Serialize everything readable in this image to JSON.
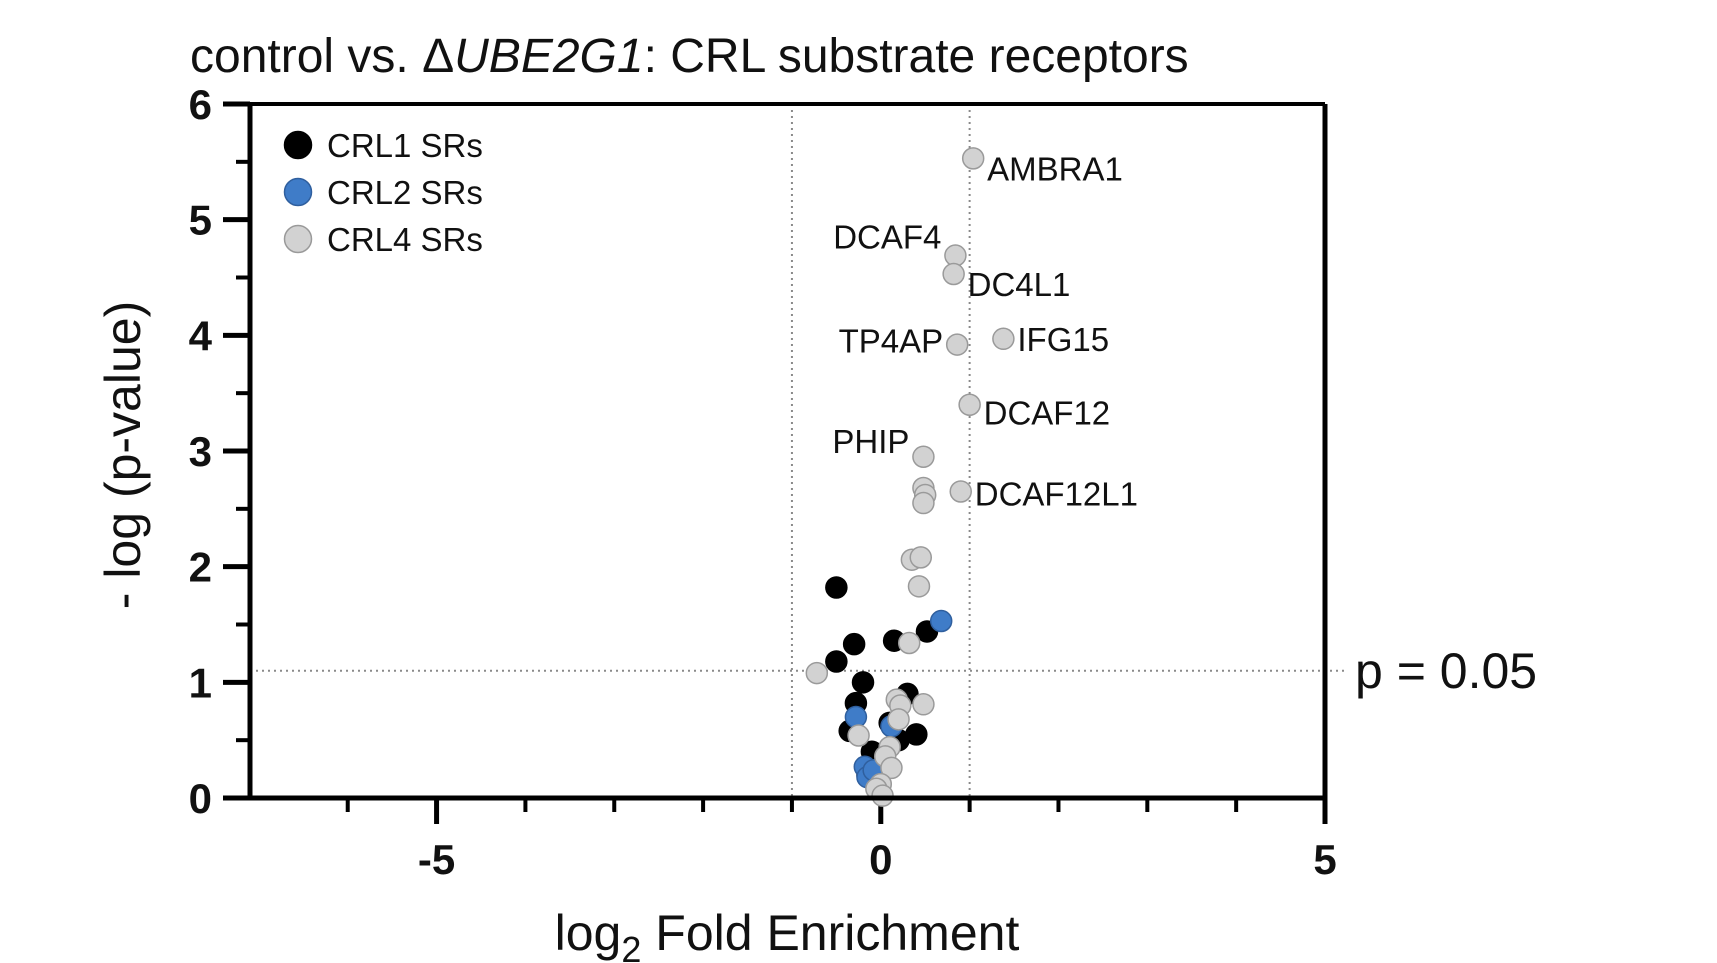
{
  "chart_data": {
    "type": "scatter",
    "title": {
      "prefix": "control vs. Δ",
      "italic": "UBE2G1",
      "suffix": ": CRL substrate receptors"
    },
    "xlabel": {
      "main": "log",
      "sub": "2",
      "rest": " Fold Enrichment"
    },
    "ylabel": "- log (p-value)",
    "xlim": [
      -7.1,
      5
    ],
    "ylim": [
      0,
      6
    ],
    "x_ticks": [
      -5,
      0,
      5
    ],
    "x_tick_labels": [
      "-5",
      "0",
      "5"
    ],
    "x_minor_ticks": [
      -6,
      -4,
      -3,
      -2,
      -1,
      1,
      2,
      3,
      4
    ],
    "y_ticks": [
      0,
      1,
      2,
      3,
      4,
      5,
      6
    ],
    "y_tick_labels": [
      "0",
      "1",
      "2",
      "3",
      "4",
      "5",
      "6"
    ],
    "y_minor_ticks": [
      0.5,
      1.5,
      2.5,
      3.5,
      4.5,
      5.5
    ],
    "reference_lines": {
      "vertical": [
        -1,
        1
      ],
      "horizontal": 1.1,
      "horizontal_label": "p = 0.05"
    },
    "series": [
      {
        "name": "CRL1 SRs",
        "color": "#000000",
        "points": [
          {
            "x": -0.5,
            "y": 1.82
          },
          {
            "x": -0.3,
            "y": 1.33
          },
          {
            "x": -0.5,
            "y": 1.18
          },
          {
            "x": -0.2,
            "y": 1.0
          },
          {
            "x": -0.28,
            "y": 0.82
          },
          {
            "x": -0.35,
            "y": 0.58
          },
          {
            "x": -0.1,
            "y": 0.4
          },
          {
            "x": -0.15,
            "y": 0.2
          },
          {
            "x": 0.15,
            "y": 1.36
          },
          {
            "x": 0.52,
            "y": 1.44
          },
          {
            "x": 0.3,
            "y": 0.9
          },
          {
            "x": 0.4,
            "y": 0.55
          },
          {
            "x": 0.2,
            "y": 0.5
          },
          {
            "x": 0.1,
            "y": 0.65
          }
        ]
      },
      {
        "name": "CRL2 SRs",
        "color": "#3f7cc8",
        "points": [
          {
            "x": 0.68,
            "y": 1.53
          },
          {
            "x": -0.28,
            "y": 0.7
          },
          {
            "x": 0.12,
            "y": 0.62
          },
          {
            "x": -0.18,
            "y": 0.27
          },
          {
            "x": -0.15,
            "y": 0.18
          },
          {
            "x": -0.08,
            "y": 0.24
          }
        ]
      },
      {
        "name": "CRL4 SRs",
        "color": "#d2d2d2",
        "points": [
          {
            "x": 1.04,
            "y": 5.53,
            "label": "AMBRA1",
            "label_side": "right"
          },
          {
            "x": 0.84,
            "y": 4.69,
            "label": "DCAF4",
            "label_side": "left"
          },
          {
            "x": 0.82,
            "y": 4.53,
            "label": "DC4L1",
            "label_side": "right"
          },
          {
            "x": 1.38,
            "y": 3.97,
            "label": "IFG15",
            "label_side": "right"
          },
          {
            "x": 0.86,
            "y": 3.92,
            "label": "TP4AP",
            "label_side": "left"
          },
          {
            "x": 1.0,
            "y": 3.4,
            "label": "DCAF12",
            "label_side": "right"
          },
          {
            "x": 0.48,
            "y": 2.95,
            "label": "PHIP",
            "label_side": "left"
          },
          {
            "x": 0.9,
            "y": 2.65,
            "label": "DCAF12L1",
            "label_side": "right"
          },
          {
            "x": 0.48,
            "y": 2.68
          },
          {
            "x": 0.5,
            "y": 2.62
          },
          {
            "x": 0.48,
            "y": 2.55
          },
          {
            "x": 0.35,
            "y": 2.06
          },
          {
            "x": 0.45,
            "y": 2.08
          },
          {
            "x": 0.43,
            "y": 1.83
          },
          {
            "x": 0.32,
            "y": 1.34
          },
          {
            "x": -0.72,
            "y": 1.08
          },
          {
            "x": 0.18,
            "y": 0.85
          },
          {
            "x": 0.22,
            "y": 0.8
          },
          {
            "x": 0.48,
            "y": 0.81
          },
          {
            "x": 0.2,
            "y": 0.68
          },
          {
            "x": -0.25,
            "y": 0.54
          },
          {
            "x": 0.1,
            "y": 0.44
          },
          {
            "x": 0.05,
            "y": 0.36
          },
          {
            "x": 0.12,
            "y": 0.26
          },
          {
            "x": 0.0,
            "y": 0.12
          },
          {
            "x": -0.05,
            "y": 0.08
          },
          {
            "x": 0.02,
            "y": 0.02
          }
        ]
      }
    ],
    "legend_position": "top-left"
  }
}
